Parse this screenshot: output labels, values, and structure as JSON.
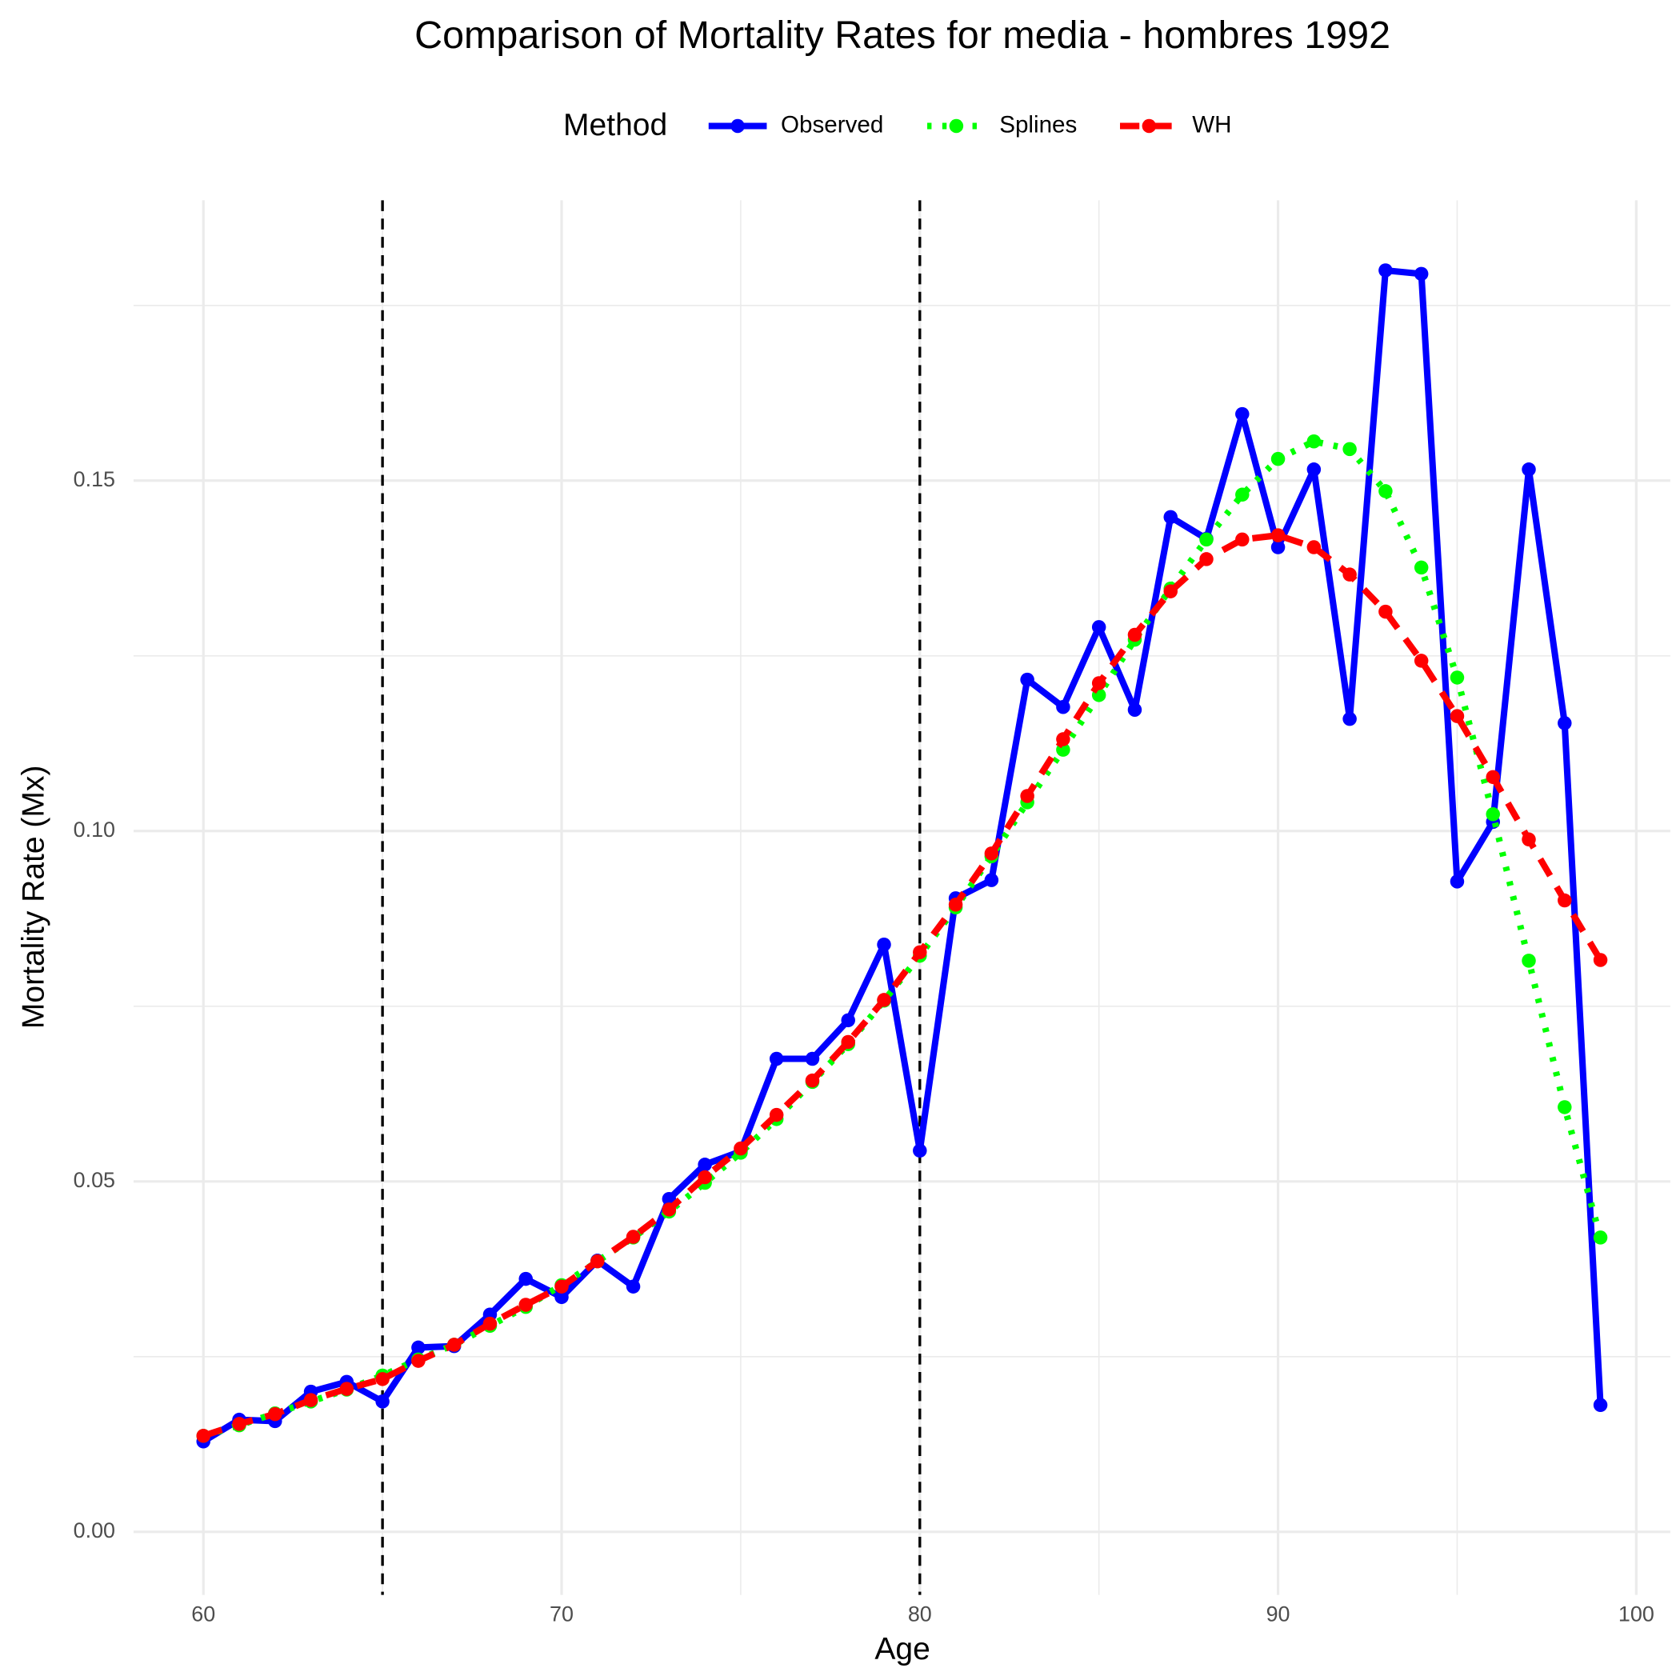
{
  "chart_data": {
    "type": "line",
    "title": "Comparison of Mortality Rates for media - hombres 1992",
    "x_label": "Age",
    "y_label": "Mortality Rate (Mx)",
    "legend_title": "Method",
    "legend_position": "top",
    "x": [
      60,
      61,
      62,
      63,
      64,
      65,
      66,
      67,
      68,
      69,
      70,
      71,
      72,
      73,
      74,
      75,
      76,
      77,
      78,
      79,
      80,
      81,
      82,
      83,
      84,
      85,
      86,
      87,
      88,
      89,
      90,
      91,
      92,
      93,
      94,
      95,
      96,
      97,
      98,
      99
    ],
    "series": [
      {
        "name": "Observed",
        "color": "#0000ff",
        "linestyle": "solid",
        "values": [
          0.0129,
          0.016,
          0.0158,
          0.02,
          0.0214,
          0.0186,
          0.0263,
          0.0265,
          0.031,
          0.0361,
          0.0335,
          0.0387,
          0.035,
          0.0475,
          0.0524,
          0.0543,
          0.0675,
          0.0675,
          0.073,
          0.0838,
          0.0544,
          0.0904,
          0.093,
          0.1216,
          0.1177,
          0.1291,
          0.1173,
          0.1448,
          0.1417,
          0.1595,
          0.1405,
          0.1516,
          0.116,
          0.18,
          0.1795,
          0.0928,
          0.1013,
          0.1516,
          0.1154,
          0.0181
        ]
      },
      {
        "name": "Splines",
        "color": "#00ff00",
        "linestyle": "dotted",
        "values": [
          0.0137,
          0.0152,
          0.0169,
          0.0186,
          0.0203,
          0.0223,
          0.0246,
          0.0267,
          0.0294,
          0.0321,
          0.0352,
          0.0386,
          0.042,
          0.0457,
          0.0498,
          0.0541,
          0.0589,
          0.0642,
          0.0696,
          0.0758,
          0.0822,
          0.0891,
          0.0964,
          0.1041,
          0.1116,
          0.1194,
          0.1273,
          0.1346,
          0.1416,
          0.148,
          0.1531,
          0.1556,
          0.1545,
          0.1485,
          0.1376,
          0.1219,
          0.1024,
          0.0815,
          0.0606,
          0.042
        ]
      },
      {
        "name": "WH",
        "color": "#ff0000",
        "linestyle": "dashed",
        "values": [
          0.0137,
          0.0154,
          0.0168,
          0.0188,
          0.0204,
          0.0218,
          0.0244,
          0.0267,
          0.0297,
          0.0324,
          0.035,
          0.0386,
          0.0421,
          0.046,
          0.0506,
          0.0547,
          0.0595,
          0.0644,
          0.0699,
          0.0759,
          0.0827,
          0.0895,
          0.0968,
          0.105,
          0.1131,
          0.1211,
          0.128,
          0.1342,
          0.1388,
          0.1416,
          0.1422,
          0.1405,
          0.1366,
          0.1313,
          0.1243,
          0.1164,
          0.1077,
          0.0988,
          0.0901,
          0.0816
        ]
      }
    ],
    "xlim": [
      58.05,
      100.95
    ],
    "ylim": [
      -0.009,
      0.19
    ],
    "xticks": [
      60,
      70,
      80,
      90,
      100
    ],
    "yticks": [
      {
        "value": 0,
        "label": "0.00"
      },
      0.05,
      {
        "value": 0.1,
        "label": "0.10"
      },
      0.15
    ],
    "x_minor_ticks": [
      65,
      75,
      85,
      95
    ],
    "y_minor_ticks": [
      0.025,
      0.075,
      0.125,
      0.175
    ],
    "vlines": [
      65,
      80
    ],
    "grid": true
  }
}
